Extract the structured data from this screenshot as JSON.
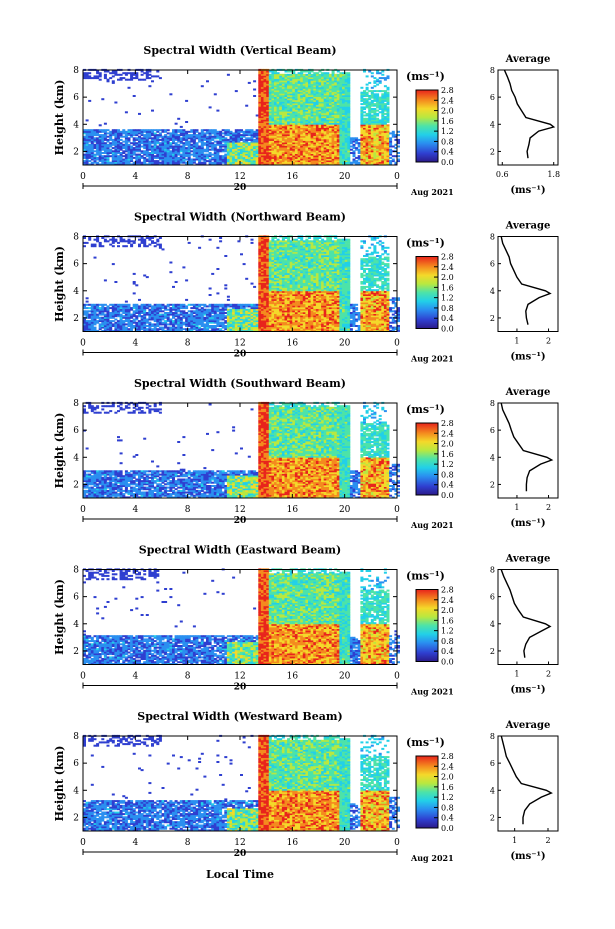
{
  "figure": {
    "xlabel": "Local Time",
    "date_label": "Aug 2021",
    "day_label": "20",
    "ylabel": "Height (km)",
    "colorbar_unit": "(ms⁻¹)",
    "avg_title": "Average",
    "avg_xlabel": "(ms⁻¹)"
  },
  "chart_data": [
    {
      "type": "heatmap",
      "title": "Spectral Width (Vertical Beam)",
      "xlabel": "Local Time",
      "ylabel": "Height (km)",
      "x_ticks": [
        "0",
        "4",
        "8",
        "12",
        "16",
        "20",
        "0"
      ],
      "xlim": [
        0,
        24
      ],
      "y_ticks": [
        "2",
        "4",
        "6",
        "8"
      ],
      "ylim": [
        1,
        8
      ],
      "colorbar": {
        "ticks": [
          "0.0",
          "0.4",
          "0.8",
          "1.2",
          "1.6",
          "2.0",
          "2.4",
          "2.8"
        ],
        "range": [
          0,
          2.8
        ]
      },
      "regions": {
        "low_layer_top_km": 3.6,
        "red_core_start_h": 13.4,
        "red_core_end_h": 19.5,
        "red_layer_top_km": 4.0,
        "later_cell_start_h": 21.0,
        "later_cell_end_h": 23.2
      },
      "average_profile": {
        "x_ticks": [
          "0.6",
          "1.8"
        ],
        "xlim": [
          0.5,
          1.9
        ],
        "y_ticks": [
          "2",
          "4",
          "6",
          "8"
        ],
        "ylim": [
          1,
          8
        ],
        "heights": [
          1.5,
          2.0,
          2.5,
          3.0,
          3.5,
          3.8,
          4.0,
          4.5,
          5.0,
          5.5,
          6.0,
          6.5,
          7.0,
          7.5,
          8.0
        ],
        "values": [
          1.2,
          1.18,
          1.22,
          1.25,
          1.45,
          1.8,
          1.72,
          1.15,
          1.05,
          0.95,
          0.9,
          0.82,
          0.78,
          0.72,
          0.65
        ]
      }
    },
    {
      "type": "heatmap",
      "title": "Spectral Width (Northward Beam)",
      "xlabel": "Local Time",
      "ylabel": "Height (km)",
      "x_ticks": [
        "0",
        "4",
        "8",
        "12",
        "16",
        "20",
        "0"
      ],
      "xlim": [
        0,
        24
      ],
      "y_ticks": [
        "2",
        "4",
        "6",
        "8"
      ],
      "ylim": [
        1,
        8
      ],
      "colorbar": {
        "ticks": [
          "0.0",
          "0.4",
          "0.8",
          "1.2",
          "1.6",
          "2.0",
          "2.4",
          "2.8"
        ],
        "range": [
          0,
          2.8
        ]
      },
      "regions": {
        "low_layer_top_km": 3.0,
        "red_core_start_h": 13.4,
        "red_core_end_h": 19.5,
        "red_layer_top_km": 3.9,
        "later_cell_start_h": 21.0,
        "later_cell_end_h": 23.2
      },
      "average_profile": {
        "x_ticks": [
          "1",
          "2"
        ],
        "xlim": [
          0.4,
          2.3
        ],
        "y_ticks": [
          "2",
          "4",
          "6",
          "8"
        ],
        "ylim": [
          1,
          8
        ],
        "heights": [
          1.5,
          2.0,
          2.5,
          3.0,
          3.5,
          3.8,
          4.0,
          4.5,
          5.0,
          5.5,
          6.0,
          6.5,
          7.0,
          7.5,
          8.0
        ],
        "values": [
          1.35,
          1.3,
          1.28,
          1.35,
          1.7,
          2.05,
          1.9,
          1.15,
          1.0,
          0.9,
          0.8,
          0.75,
          0.65,
          0.55,
          0.5
        ]
      }
    },
    {
      "type": "heatmap",
      "title": "Spectral Width (Southward Beam)",
      "xlabel": "Local Time",
      "ylabel": "Height (km)",
      "x_ticks": [
        "0",
        "4",
        "8",
        "12",
        "16",
        "20",
        "0"
      ],
      "xlim": [
        0,
        24
      ],
      "y_ticks": [
        "2",
        "4",
        "6",
        "8"
      ],
      "ylim": [
        1,
        8
      ],
      "colorbar": {
        "ticks": [
          "0.0",
          "0.4",
          "0.8",
          "1.2",
          "1.6",
          "2.0",
          "2.4",
          "2.8"
        ],
        "range": [
          0,
          2.8
        ]
      },
      "regions": {
        "low_layer_top_km": 3.0,
        "red_core_start_h": 13.4,
        "red_core_end_h": 19.5,
        "red_layer_top_km": 3.9,
        "later_cell_start_h": 21.0,
        "later_cell_end_h": 23.2
      },
      "average_profile": {
        "x_ticks": [
          "1",
          "2"
        ],
        "xlim": [
          0.4,
          2.3
        ],
        "y_ticks": [
          "2",
          "4",
          "6",
          "8"
        ],
        "ylim": [
          1,
          8
        ],
        "heights": [
          1.5,
          2.0,
          2.5,
          3.0,
          3.5,
          3.8,
          4.0,
          4.5,
          5.0,
          5.5,
          6.0,
          6.5,
          7.0,
          7.5,
          8.0
        ],
        "values": [
          1.3,
          1.3,
          1.32,
          1.4,
          1.75,
          2.1,
          1.95,
          1.2,
          1.05,
          0.9,
          0.82,
          0.75,
          0.65,
          0.55,
          0.5
        ]
      }
    },
    {
      "type": "heatmap",
      "title": "Spectral Width (Eastward Beam)",
      "xlabel": "Local Time",
      "ylabel": "Height (km)",
      "x_ticks": [
        "0",
        "4",
        "8",
        "12",
        "16",
        "20",
        "0"
      ],
      "xlim": [
        0,
        24
      ],
      "y_ticks": [
        "2",
        "4",
        "6",
        "8"
      ],
      "ylim": [
        1,
        8
      ],
      "colorbar": {
        "ticks": [
          "0.0",
          "0.4",
          "0.8",
          "1.2",
          "1.6",
          "2.0",
          "2.4",
          "2.8"
        ],
        "range": [
          0,
          2.8
        ]
      },
      "regions": {
        "low_layer_top_km": 3.1,
        "red_core_start_h": 13.4,
        "red_core_end_h": 19.5,
        "red_layer_top_km": 4.0,
        "later_cell_start_h": 21.0,
        "later_cell_end_h": 23.2
      },
      "average_profile": {
        "x_ticks": [
          "1",
          "2"
        ],
        "xlim": [
          0.4,
          2.3
        ],
        "y_ticks": [
          "2",
          "4",
          "6",
          "8"
        ],
        "ylim": [
          1,
          8
        ],
        "heights": [
          1.5,
          2.0,
          2.5,
          3.0,
          3.5,
          3.8,
          4.0,
          4.5,
          5.0,
          5.5,
          6.0,
          6.5,
          7.0,
          7.5,
          8.0
        ],
        "values": [
          1.25,
          1.22,
          1.28,
          1.4,
          1.8,
          2.05,
          1.9,
          1.2,
          1.05,
          0.92,
          0.85,
          0.78,
          0.68,
          0.58,
          0.5
        ]
      }
    },
    {
      "type": "heatmap",
      "title": "Spectral Width (Westward Beam)",
      "xlabel": "Local Time",
      "ylabel": "Height (km)",
      "x_ticks": [
        "0",
        "4",
        "8",
        "12",
        "16",
        "20",
        "0"
      ],
      "xlim": [
        0,
        24
      ],
      "y_ticks": [
        "2",
        "4",
        "6",
        "8"
      ],
      "ylim": [
        1,
        8
      ],
      "colorbar": {
        "ticks": [
          "0.0",
          "0.4",
          "0.8",
          "1.2",
          "1.6",
          "2.0",
          "2.4",
          "2.8"
        ],
        "range": [
          0,
          2.8
        ]
      },
      "regions": {
        "low_layer_top_km": 3.2,
        "red_core_start_h": 13.4,
        "red_core_end_h": 19.5,
        "red_layer_top_km": 4.0,
        "later_cell_start_h": 21.0,
        "later_cell_end_h": 23.2
      },
      "average_profile": {
        "x_ticks": [
          "1",
          "2"
        ],
        "xlim": [
          0.5,
          2.3
        ],
        "y_ticks": [
          "2",
          "4",
          "6",
          "8"
        ],
        "ylim": [
          1,
          8
        ],
        "heights": [
          1.5,
          2.0,
          2.5,
          3.0,
          3.5,
          3.8,
          4.0,
          4.5,
          5.0,
          5.5,
          6.0,
          6.5,
          7.0,
          7.5,
          8.0
        ],
        "values": [
          1.25,
          1.25,
          1.3,
          1.45,
          1.8,
          2.1,
          1.95,
          1.2,
          1.05,
          0.95,
          0.85,
          0.75,
          0.7,
          0.65,
          0.6
        ]
      }
    }
  ]
}
